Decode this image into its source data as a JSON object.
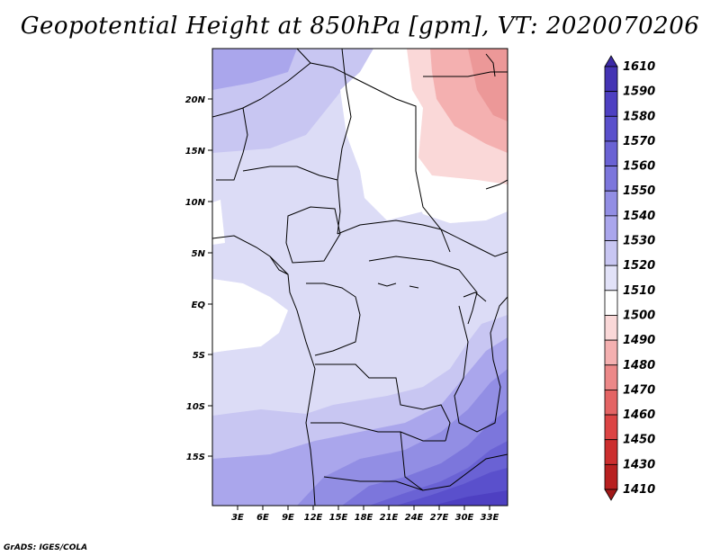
{
  "title": "Geopotential Height at 850hPa [gpm], VT: 2020070206",
  "credit": "GrADS: IGES/COLA",
  "map": {
    "lon_ticks": [
      "3E",
      "6E",
      "9E",
      "12E",
      "15E",
      "18E",
      "21E",
      "24E",
      "27E",
      "30E",
      "33E"
    ],
    "lat_ticks": [
      "20N",
      "15N",
      "10N",
      "5N",
      "EQ",
      "5S",
      "10S",
      "15S"
    ]
  },
  "colorbar": {
    "levels": [
      "1610",
      "1590",
      "1580",
      "1570",
      "1560",
      "1550",
      "1540",
      "1530",
      "1520",
      "1510",
      "1500",
      "1490",
      "1480",
      "1470",
      "1460",
      "1450",
      "1430",
      "1410"
    ],
    "colors": [
      "#3c2aa6",
      "#4434b4",
      "#4e40c2",
      "#5a50cc",
      "#6a62d4",
      "#7c76dc",
      "#928ee4",
      "#aaa6ec",
      "#c8c6f2",
      "#e2e2f8",
      "#ffffff",
      "#fad8d8",
      "#f4b0b0",
      "#ec8888",
      "#e46464",
      "#dc4444",
      "#cc2e2e",
      "#b82020",
      "#a01818"
    ]
  }
}
